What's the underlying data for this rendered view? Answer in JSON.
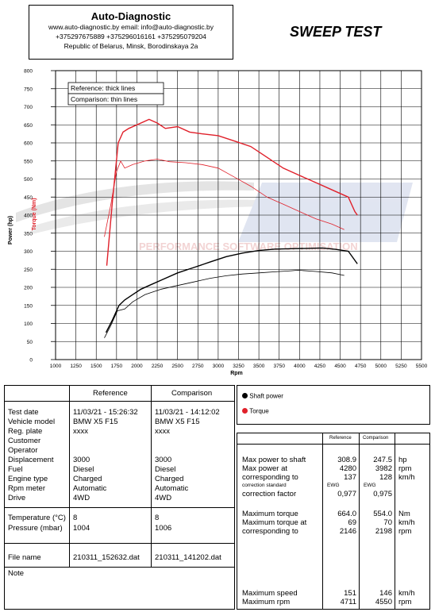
{
  "header": {
    "company": "Auto-Diagnostic",
    "line1": "www.auto-diagnostic.by     email: info@auto-diagnostic.by",
    "line2": "+375297675889  +375296016161  +375295079204",
    "line3": "Republic of Belarus, Minsk, Borodinskaya 2a"
  },
  "sweep_title": "SWEEP TEST",
  "watermark": {
    "text": "PERFORMANCE SOFTWARE OPTIMISATION",
    "color": "#e9b0b0"
  },
  "chart_legend": {
    "ref": "Reference: thick lines",
    "cmp": "Comparison: thin lines"
  },
  "chart_data": {
    "type": "line",
    "xlabel": "Rpm",
    "ylabel_power": "Power (hp)",
    "ylabel_torque": "Torque (Nm)",
    "xlim": [
      1000,
      5500
    ],
    "ylim": [
      0,
      800
    ],
    "xticks": [
      "1000",
      "1250",
      "1500",
      "1750",
      "2000",
      "2250",
      "2500",
      "2750",
      "3000",
      "3250",
      "3500",
      "3750",
      "4000",
      "4250",
      "4500",
      "4750",
      "5000",
      "5250",
      "5500"
    ],
    "yticks": [
      "0",
      "50",
      "100",
      "150",
      "200",
      "250",
      "300",
      "350",
      "400",
      "450",
      "500",
      "550",
      "600",
      "650",
      "700",
      "750",
      "800"
    ],
    "grid": true,
    "series": [
      {
        "name": "Torque",
        "role": "reference",
        "color": "#e0202a",
        "width": 1.4,
        "points": [
          [
            1630,
            260
          ],
          [
            1700,
            440
          ],
          [
            1770,
            600
          ],
          [
            1830,
            630
          ],
          [
            1900,
            640
          ],
          [
            2000,
            650
          ],
          [
            2150,
            665
          ],
          [
            2250,
            655
          ],
          [
            2350,
            640
          ],
          [
            2500,
            645
          ],
          [
            2650,
            630
          ],
          [
            2800,
            625
          ],
          [
            3000,
            620
          ],
          [
            3200,
            605
          ],
          [
            3400,
            590
          ],
          [
            3600,
            560
          ],
          [
            3800,
            530
          ],
          [
            4000,
            510
          ],
          [
            4200,
            490
          ],
          [
            4400,
            470
          ],
          [
            4600,
            450
          ],
          [
            4680,
            410
          ],
          [
            4711,
            400
          ]
        ]
      },
      {
        "name": "Torque",
        "role": "comparison",
        "color": "#e0202a",
        "width": 0.8,
        "points": [
          [
            1600,
            340
          ],
          [
            1680,
            430
          ],
          [
            1750,
            520
          ],
          [
            1800,
            550
          ],
          [
            1850,
            530
          ],
          [
            1950,
            540
          ],
          [
            2100,
            550
          ],
          [
            2250,
            555
          ],
          [
            2400,
            548
          ],
          [
            2600,
            545
          ],
          [
            2800,
            540
          ],
          [
            3000,
            530
          ],
          [
            3200,
            505
          ],
          [
            3400,
            480
          ],
          [
            3600,
            450
          ],
          [
            3800,
            430
          ],
          [
            4000,
            410
          ],
          [
            4200,
            390
          ],
          [
            4400,
            375
          ],
          [
            4550,
            360
          ]
        ]
      },
      {
        "name": "Shaft power",
        "role": "reference",
        "color": "#000000",
        "width": 1.4,
        "points": [
          [
            1620,
            75
          ],
          [
            1700,
            110
          ],
          [
            1780,
            150
          ],
          [
            1850,
            165
          ],
          [
            1950,
            180
          ],
          [
            2050,
            195
          ],
          [
            2150,
            205
          ],
          [
            2300,
            220
          ],
          [
            2500,
            240
          ],
          [
            2700,
            255
          ],
          [
            2900,
            270
          ],
          [
            3100,
            285
          ],
          [
            3300,
            295
          ],
          [
            3500,
            302
          ],
          [
            3700,
            306
          ],
          [
            3900,
            307
          ],
          [
            4100,
            308
          ],
          [
            4280,
            309
          ],
          [
            4450,
            305
          ],
          [
            4600,
            300
          ],
          [
            4711,
            265
          ]
        ]
      },
      {
        "name": "Shaft power",
        "role": "comparison",
        "color": "#000000",
        "width": 0.8,
        "points": [
          [
            1600,
            60
          ],
          [
            1680,
            95
          ],
          [
            1760,
            135
          ],
          [
            1850,
            140
          ],
          [
            1950,
            160
          ],
          [
            2100,
            180
          ],
          [
            2300,
            195
          ],
          [
            2500,
            205
          ],
          [
            2700,
            215
          ],
          [
            2900,
            225
          ],
          [
            3100,
            232
          ],
          [
            3300,
            237
          ],
          [
            3500,
            240
          ],
          [
            3700,
            243
          ],
          [
            3900,
            246
          ],
          [
            3982,
            247.5
          ],
          [
            4200,
            244
          ],
          [
            4400,
            240
          ],
          [
            4550,
            233
          ]
        ]
      }
    ]
  },
  "legend": {
    "shaft": "Shaft power",
    "torque": "Torque",
    "shaft_color": "#000000",
    "torque_color": "#e0202a"
  },
  "left": {
    "col_ref": "Reference",
    "col_cmp": "Comparison",
    "rows": [
      {
        "label": "Test date",
        "ref": "11/03/21 - 15:26:32",
        "cmp": "11/03/21 - 14:12:02"
      },
      {
        "label": "Vehicle model",
        "ref": "BMW X5 F15",
        "cmp": "BMW X5 F15"
      },
      {
        "label": "Reg. plate",
        "ref": "xxxx",
        "cmp": "xxxx"
      },
      {
        "label": "Customer",
        "ref": "",
        "cmp": ""
      },
      {
        "label": "Operator",
        "ref": "",
        "cmp": ""
      },
      {
        "label": "Displacement",
        "ref": "3000",
        "cmp": "3000"
      },
      {
        "label": "Fuel",
        "ref": "Diesel",
        "cmp": "Diesel"
      },
      {
        "label": "Engine type",
        "ref": "Charged",
        "cmp": "Charged"
      },
      {
        "label": "Rpm meter",
        "ref": "Automatic",
        "cmp": "Automatic"
      },
      {
        "label": "Drive",
        "ref": "4WD",
        "cmp": "4WD"
      }
    ],
    "env": [
      {
        "label": "Temperature (°C)",
        "ref": "8",
        "cmp": "8"
      },
      {
        "label": "Pressure (mbar)",
        "ref": "1004",
        "cmp": "1006"
      }
    ],
    "file": {
      "label": "File name",
      "ref": "210311_152632.dat",
      "cmp": "210311_141202.dat"
    },
    "note": "Note"
  },
  "right": {
    "col_ref": "Reference",
    "col_cmp": "Comparison",
    "rows": [
      {
        "label": "Max power to shaft",
        "ref": "308.9",
        "cmp": "247.5",
        "unit": "hp",
        "small": false
      },
      {
        "label": "Max power at",
        "ref": "4280",
        "cmp": "3982",
        "unit": "rpm",
        "small": false
      },
      {
        "label": "corresponding to",
        "ref": "137",
        "cmp": "128",
        "unit": "km/h",
        "small": false
      },
      {
        "label": "correction standard",
        "ref": "EWG",
        "cmp": "EWG",
        "unit": "",
        "small": true
      },
      {
        "label": "correction factor",
        "ref": "0,977",
        "cmp": "0,975",
        "unit": "",
        "small": false
      },
      {
        "label": "Maximum torque",
        "ref": "664.0",
        "cmp": "554.0",
        "unit": "Nm",
        "small": false
      },
      {
        "label": "Maximum torque at",
        "ref": "69",
        "cmp": "70",
        "unit": "km/h",
        "small": false
      },
      {
        "label": "corresponding to",
        "ref": "2146",
        "cmp": "2198",
        "unit": "rpm",
        "small": false
      },
      {
        "label": "Maximum speed",
        "ref": "151",
        "cmp": "146",
        "unit": "km/h",
        "small": false
      },
      {
        "label": "Maximum rpm",
        "ref": "4711",
        "cmp": "4550",
        "unit": "rpm",
        "small": false
      }
    ]
  }
}
